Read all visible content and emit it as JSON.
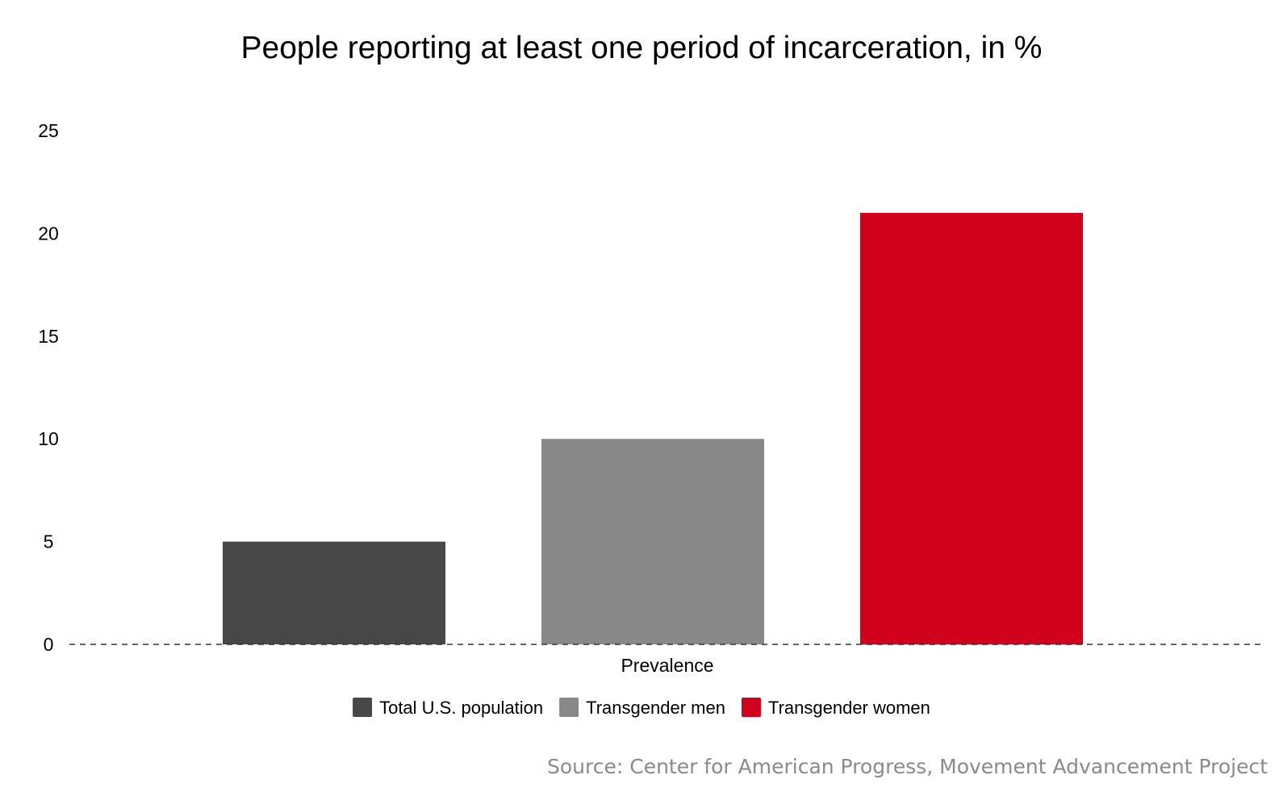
{
  "chart_data": {
    "type": "bar",
    "title": "People reporting at least one period of incarceration, in %",
    "categories": [
      "Prevalence"
    ],
    "series": [
      {
        "name": "Total U.S. population",
        "values": [
          5
        ],
        "color": "#474747"
      },
      {
        "name": "Transgender men",
        "values": [
          10
        ],
        "color": "#888888"
      },
      {
        "name": "Transgender women",
        "values": [
          21
        ],
        "color": "#d0021b"
      }
    ],
    "ylim": [
      0,
      25
    ],
    "yticks": [
      0,
      5,
      10,
      15,
      20,
      25
    ],
    "xlabel": "",
    "ylabel": "",
    "grid": false,
    "baseline_style": "dashed",
    "legend_position": "bottom"
  },
  "source": "Source: Center for American Progress, Movement Advancement Project"
}
